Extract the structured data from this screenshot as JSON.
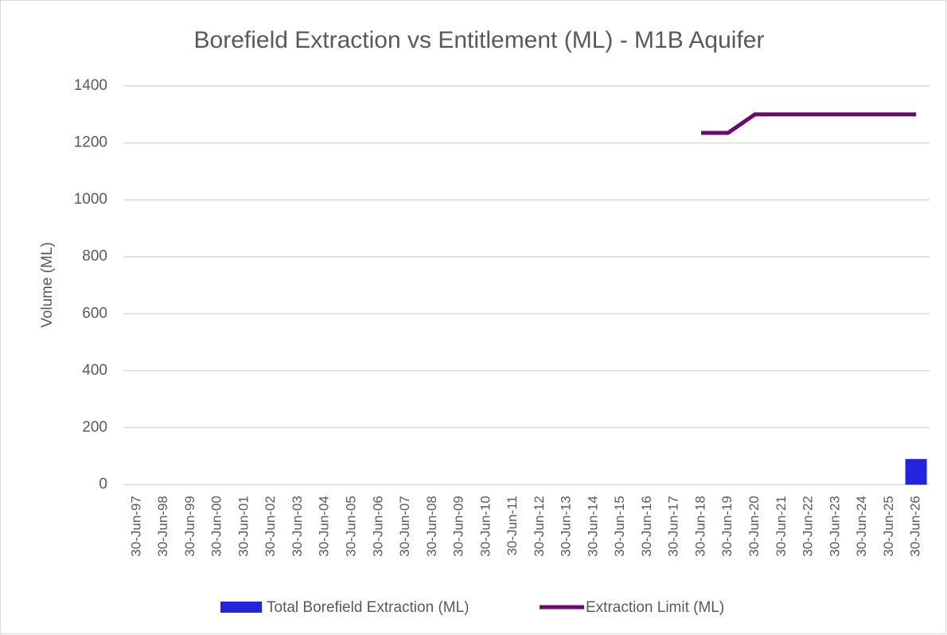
{
  "chart_data": {
    "type": "bar_line",
    "title": "Borefield Extraction vs Entitlement (ML) - M1B Aquifer",
    "y_label": "Volume (ML)",
    "categories": [
      "30-Jun-97",
      "30-Jun-98",
      "30-Jun-99",
      "30-Jun-00",
      "30-Jun-01",
      "30-Jun-02",
      "30-Jun-03",
      "30-Jun-04",
      "30-Jun-05",
      "30-Jun-06",
      "30-Jun-07",
      "30-Jun-08",
      "30-Jun-09",
      "30-Jun-10",
      "30-Jun-11",
      "30-Jun-12",
      "30-Jun-13",
      "30-Jun-14",
      "30-Jun-15",
      "30-Jun-16",
      "30-Jun-17",
      "30-Jun-18",
      "30-Jun-19",
      "30-Jun-20",
      "30-Jun-21",
      "30-Jun-22",
      "30-Jun-23",
      "30-Jun-24",
      "30-Jun-25",
      "30-Jun-26"
    ],
    "series": [
      {
        "name": "Total Borefield Extraction (ML)",
        "type": "bar",
        "color": "#2323e0",
        "values": [
          null,
          null,
          null,
          null,
          null,
          null,
          null,
          null,
          null,
          null,
          null,
          null,
          null,
          null,
          null,
          null,
          null,
          null,
          null,
          null,
          null,
          null,
          null,
          null,
          null,
          null,
          null,
          null,
          null,
          90
        ]
      },
      {
        "name": "Extraction Limit (ML)",
        "type": "line",
        "color": "#6a0a6e",
        "values": [
          null,
          null,
          null,
          null,
          null,
          null,
          null,
          null,
          null,
          null,
          null,
          null,
          null,
          null,
          null,
          null,
          null,
          null,
          null,
          null,
          null,
          1235,
          1235,
          1300,
          1300,
          1300,
          1300,
          1300,
          1300,
          1300
        ]
      }
    ],
    "ylim": [
      0,
      1400
    ],
    "yticks": [
      0,
      200,
      400,
      600,
      800,
      1000,
      1200,
      1400
    ],
    "grid": true
  }
}
